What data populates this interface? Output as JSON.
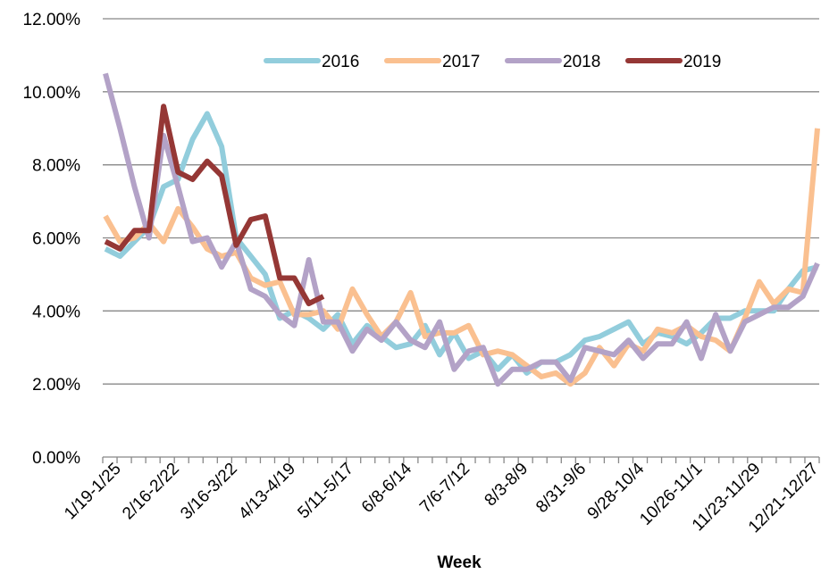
{
  "chart_data": {
    "type": "line",
    "x_label": "Week",
    "categories": [
      null,
      "1/19-1/25",
      null,
      null,
      null,
      "2/16-2/22",
      null,
      null,
      null,
      "3/16-3/22",
      null,
      null,
      null,
      "4/13-4/19",
      null,
      null,
      null,
      "5/11-5/17",
      null,
      null,
      null,
      "6/8-6/14",
      null,
      null,
      null,
      "7/6-7/12",
      null,
      null,
      null,
      "8/3-8/9",
      null,
      null,
      null,
      "8/31-9/6",
      null,
      null,
      null,
      "9/28-10/4",
      null,
      null,
      null,
      "10/26-11/1",
      null,
      null,
      null,
      "11/23-11/29",
      null,
      null,
      null,
      "12/21-12/27"
    ],
    "series": [
      {
        "name": "2016",
        "color": "#92CDDC",
        "values": [
          5.7,
          5.5,
          5.9,
          6.3,
          7.4,
          7.6,
          8.7,
          9.4,
          8.5,
          6.0,
          5.5,
          5.0,
          3.8,
          4.0,
          3.8,
          3.5,
          3.9,
          3.1,
          3.6,
          3.3,
          3.0,
          3.1,
          3.6,
          2.8,
          3.4,
          2.7,
          2.9,
          2.4,
          2.8,
          2.3,
          2.6,
          2.6,
          2.8,
          3.2,
          3.3,
          3.5,
          3.7,
          3.1,
          3.4,
          3.3,
          3.1,
          3.4,
          3.8,
          3.8,
          4.0,
          4.0,
          4.0,
          4.6,
          5.1,
          5.2
        ]
      },
      {
        "name": "2017",
        "color": "#FAC090",
        "values": [
          6.6,
          5.9,
          6.0,
          6.4,
          5.9,
          6.8,
          6.3,
          5.7,
          5.5,
          5.6,
          4.9,
          4.7,
          4.8,
          3.9,
          3.9,
          4.0,
          3.5,
          4.6,
          3.9,
          3.3,
          3.7,
          4.5,
          3.3,
          3.4,
          3.4,
          3.6,
          2.8,
          2.9,
          2.8,
          2.5,
          2.2,
          2.3,
          2.0,
          2.3,
          3.0,
          2.5,
          3.1,
          2.9,
          3.5,
          3.4,
          3.6,
          3.3,
          3.2,
          2.9,
          3.8,
          4.8,
          4.2,
          4.6,
          4.5,
          9.0
        ]
      },
      {
        "name": "2018",
        "color": "#B3A2C7",
        "values": [
          10.5,
          9.0,
          7.4,
          6.0,
          8.8,
          7.4,
          5.9,
          6.0,
          5.2,
          5.9,
          4.6,
          4.4,
          3.9,
          3.6,
          5.4,
          3.7,
          3.7,
          2.9,
          3.5,
          3.2,
          3.7,
          3.2,
          3.0,
          3.7,
          2.4,
          2.9,
          3.0,
          2.0,
          2.4,
          2.4,
          2.6,
          2.6,
          2.1,
          3.0,
          2.9,
          2.8,
          3.2,
          2.7,
          3.1,
          3.1,
          3.7,
          2.7,
          3.9,
          2.9,
          3.7,
          3.9,
          4.1,
          4.1,
          4.4,
          5.3
        ]
      },
      {
        "name": "2019",
        "color": "#953735",
        "values": [
          5.9,
          5.7,
          6.2,
          6.2,
          9.6,
          7.8,
          7.6,
          8.1,
          7.7,
          5.8,
          6.5,
          6.6,
          4.9,
          4.9,
          4.2,
          4.4,
          null,
          null,
          null,
          null,
          null,
          null,
          null,
          null,
          null,
          null,
          null,
          null,
          null,
          null,
          null,
          null,
          null,
          null,
          null,
          null,
          null,
          null,
          null,
          null,
          null,
          null,
          null,
          null,
          null,
          null,
          null,
          null,
          null,
          null
        ]
      }
    ],
    "ylim": [
      0,
      12
    ],
    "yticks": [
      {
        "value": 0,
        "label": "0.00%"
      },
      {
        "value": 2,
        "label": "2.00%"
      },
      {
        "value": 4,
        "label": "4.00%"
      },
      {
        "value": 6,
        "label": "6.00%"
      },
      {
        "value": 8,
        "label": "8.00%"
      },
      {
        "value": 10,
        "label": "10.00%"
      },
      {
        "value": 12,
        "label": "12.00%"
      }
    ],
    "grid": true,
    "legend": "top"
  }
}
